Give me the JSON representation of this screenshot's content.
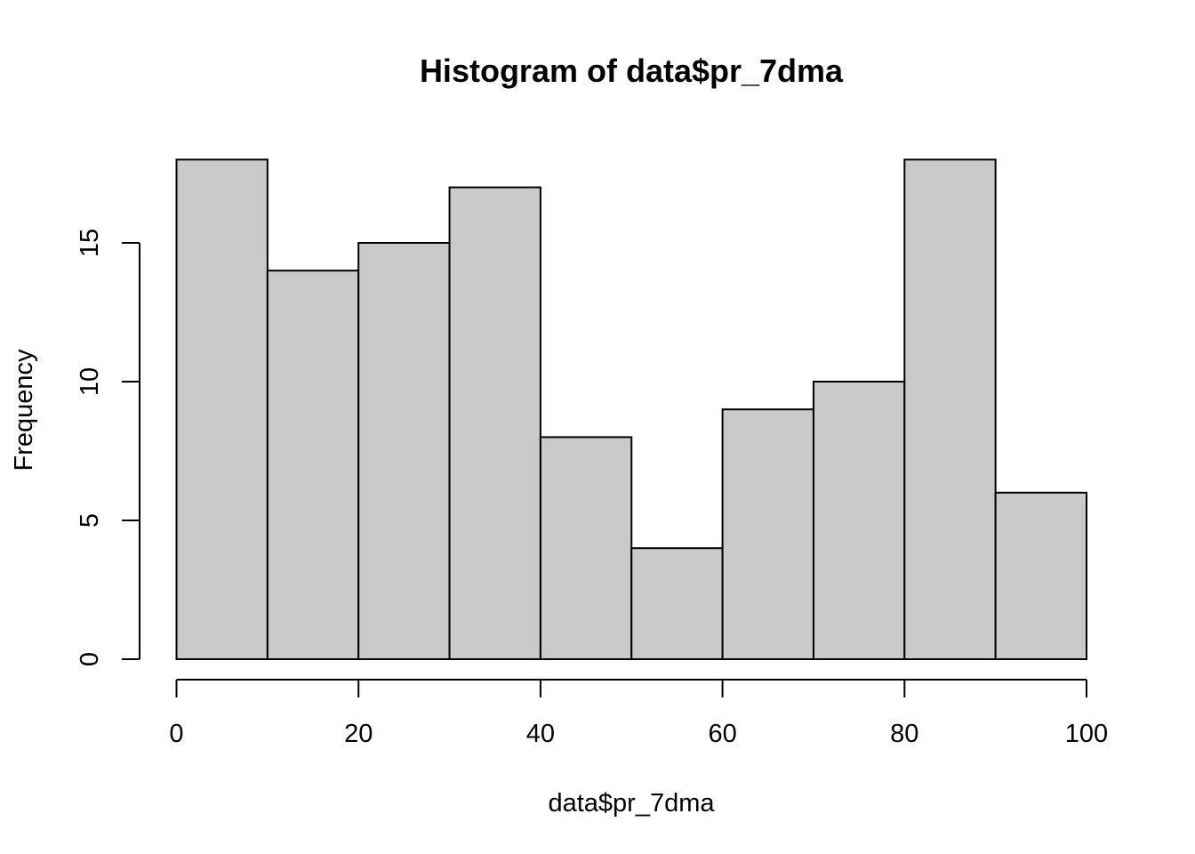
{
  "chart_data": {
    "type": "bar",
    "subtype": "histogram",
    "title": "Histogram of data$pr_7dma",
    "xlabel": "data$pr_7dma",
    "ylabel": "Frequency",
    "bins": [
      {
        "from": 0,
        "to": 10,
        "count": 18
      },
      {
        "from": 10,
        "to": 20,
        "count": 14
      },
      {
        "from": 20,
        "to": 30,
        "count": 15
      },
      {
        "from": 30,
        "to": 40,
        "count": 17
      },
      {
        "from": 40,
        "to": 50,
        "count": 8
      },
      {
        "from": 50,
        "to": 60,
        "count": 4
      },
      {
        "from": 60,
        "to": 70,
        "count": 9
      },
      {
        "from": 70,
        "to": 80,
        "count": 10
      },
      {
        "from": 80,
        "to": 90,
        "count": 18
      },
      {
        "from": 90,
        "to": 100,
        "count": 6
      }
    ],
    "xlim": [
      0,
      100
    ],
    "ylim": [
      0,
      18
    ],
    "x_ticks": [
      0,
      20,
      40,
      60,
      80,
      100
    ],
    "x_tick_labels": [
      "0",
      "20",
      "40",
      "60",
      "80",
      "100"
    ],
    "y_ticks": [
      0,
      5,
      10,
      15
    ],
    "y_tick_labels": [
      "0",
      "5",
      "10",
      "15"
    ],
    "grid": false,
    "legend": "none",
    "bar_fill": "#cacaca",
    "bar_stroke": "#000000"
  }
}
